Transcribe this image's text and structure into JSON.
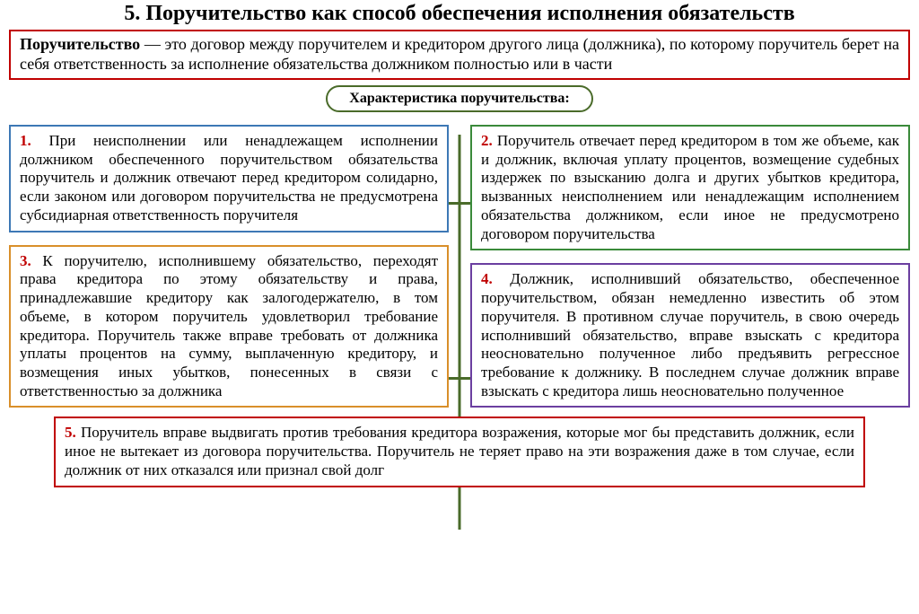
{
  "title": {
    "text": "5. Поручительство как способ обеспечения исполнения обязательств",
    "fontsize": 24
  },
  "definition": {
    "term": "Поручительство",
    "text": " — это договор между поручителем и кредитором другого лица (должника), по которому поручитель берет на себя ответственность за исполнение обязательства должником полностью или в части",
    "border_color": "#c00000",
    "fontsize": 18
  },
  "characteristic_title": {
    "text": "Характеристика поручительства:",
    "border_color": "#4a6b2a",
    "fontsize": 16
  },
  "connector_color": "#4a6b2a",
  "boxes": [
    {
      "num": "1.",
      "num_color": "#c00000",
      "border_color": "#3d78b5",
      "text": " При неисполнении или ненадлежащем исполнении должником обеспеченного поручительством обязательства поручитель и должник отвечают перед кредитором солидарно, если законом или договором поручительства не предусмотрена субсидиарная ответственность поручителя"
    },
    {
      "num": "2.",
      "num_color": "#c00000",
      "border_color": "#3a8a3a",
      "text": " Поручитель отвечает перед кредитором в том же объеме, как и должник, включая уплату процентов, возмещение судебных издержек по взысканию долга и других убытков кредитора, вызванных неисполнением или ненадлежащим исполнением обязательства должником, если иное не предусмотрено договором поручительства"
    },
    {
      "num": "3.",
      "num_color": "#c00000",
      "border_color": "#d98f2a",
      "text": " К поручителю, исполнившему обязательство, переходят права кредитора по этому обязательству и права, принадлежавшие кредитору как залогодержателю, в том объеме, в котором поручитель удовлетворил требование кредитора. Поручитель также вправе требовать от должника уплаты процентов на сумму, выплаченную кредитору, и возмещения иных убытков, понесенных в связи с ответственностью за должника"
    },
    {
      "num": "4.",
      "num_color": "#c00000",
      "border_color": "#6b3fa0",
      "text": " Должник, исполнивший обязательство, обеспеченное поручительством, обязан немедленно известить об этом поручителя. В противном случае поручитель, в свою очередь исполнивший обязательство, вправе взыскать с кредитора неосновательно полученное либо предъявить регрессное требование к должнику. В последнем случае должник вправе взыскать с кредитора лишь неосновательно полученное"
    },
    {
      "num": "5.",
      "num_color": "#c00000",
      "border_color": "#c00000",
      "text": " Поручитель вправе выдвигать против требования кредитора возражения, которые мог бы представить должник, если иное не вытекает из договора поручительства. Поручитель не теряет право на эти возражения даже в том случае, если должник от них отказался или признал свой долг"
    }
  ],
  "body_fontsize": 17
}
